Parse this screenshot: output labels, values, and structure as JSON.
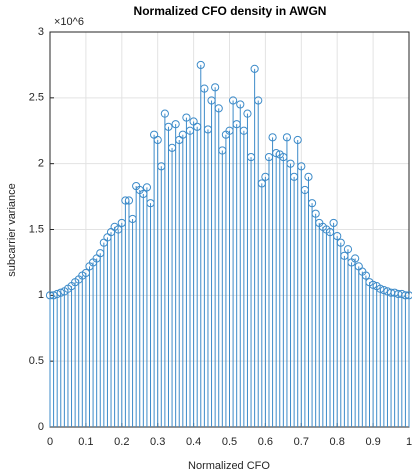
{
  "chart_data": {
    "type": "stem",
    "title": "Normalized CFO density in AWGN",
    "x_label": "Normalized CFO",
    "y_label": "subcarrier variance",
    "y_exponent": "×10^6",
    "x": [
      0,
      0.01,
      0.02,
      0.03,
      0.04,
      0.05,
      0.06,
      0.07,
      0.08,
      0.09,
      0.1,
      0.11,
      0.12,
      0.13,
      0.14,
      0.15,
      0.16,
      0.17,
      0.18,
      0.19,
      0.2,
      0.21,
      0.22,
      0.23,
      0.24,
      0.25,
      0.26,
      0.27,
      0.28,
      0.29,
      0.3,
      0.31,
      0.32,
      0.33,
      0.34,
      0.35,
      0.36,
      0.37,
      0.38,
      0.39,
      0.4,
      0.41,
      0.42,
      0.43,
      0.44,
      0.45,
      0.46,
      0.47,
      0.48,
      0.49,
      0.5,
      0.51,
      0.52,
      0.53,
      0.54,
      0.55,
      0.56,
      0.57,
      0.58,
      0.59,
      0.6,
      0.61,
      0.62,
      0.63,
      0.64,
      0.65,
      0.66,
      0.67,
      0.68,
      0.69,
      0.7,
      0.71,
      0.72,
      0.73,
      0.74,
      0.75,
      0.76,
      0.77,
      0.78,
      0.79,
      0.8,
      0.81,
      0.82,
      0.83,
      0.84,
      0.85,
      0.86,
      0.87,
      0.88,
      0.89,
      0.9,
      0.91,
      0.92,
      0.93,
      0.94,
      0.95,
      0.96,
      0.97,
      0.98,
      0.99,
      1
    ],
    "values": [
      1.0,
      1.0,
      1.01,
      1.02,
      1.03,
      1.05,
      1.07,
      1.1,
      1.12,
      1.15,
      1.17,
      1.22,
      1.25,
      1.28,
      1.32,
      1.4,
      1.44,
      1.48,
      1.52,
      1.5,
      1.55,
      1.72,
      1.72,
      1.58,
      1.83,
      1.8,
      1.77,
      1.82,
      1.7,
      2.22,
      2.18,
      1.98,
      2.38,
      2.28,
      2.12,
      2.3,
      2.18,
      2.22,
      2.35,
      2.25,
      2.32,
      2.28,
      2.75,
      2.57,
      2.26,
      2.48,
      2.58,
      2.42,
      2.1,
      2.22,
      2.25,
      2.48,
      2.3,
      2.45,
      2.25,
      2.38,
      2.05,
      2.72,
      2.48,
      1.85,
      1.9,
      2.05,
      2.2,
      2.08,
      2.07,
      2.05,
      2.2,
      2.0,
      1.9,
      2.18,
      1.98,
      1.8,
      1.9,
      1.7,
      1.62,
      1.55,
      1.52,
      1.5,
      1.48,
      1.55,
      1.45,
      1.4,
      1.3,
      1.35,
      1.25,
      1.28,
      1.22,
      1.18,
      1.15,
      1.1,
      1.08,
      1.07,
      1.05,
      1.04,
      1.03,
      1.02,
      1.02,
      1.01,
      1.01,
      1.0,
      1.0
    ],
    "color": "#3d8bc9",
    "xlim": [
      0,
      1
    ],
    "xticks": [
      0,
      0.1,
      0.2,
      0.3,
      0.4,
      0.5,
      0.6,
      0.7,
      0.8,
      0.9,
      1
    ],
    "ylim": [
      0,
      3
    ],
    "yticks": [
      0,
      0.5,
      1,
      1.5,
      2,
      2.5,
      3
    ],
    "grid": true
  }
}
